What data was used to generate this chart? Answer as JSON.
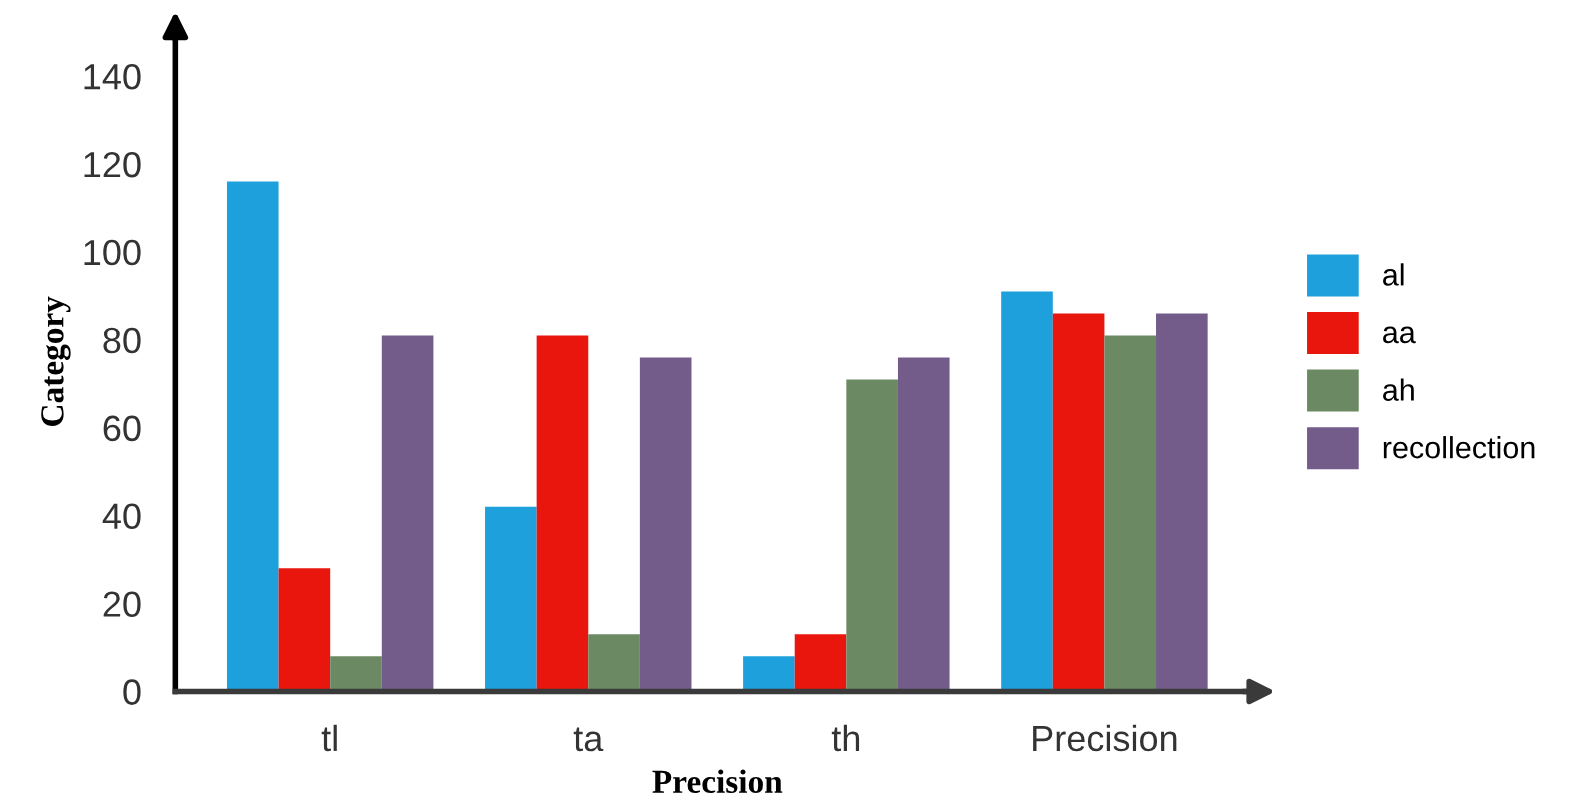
{
  "chart_data": {
    "type": "bar",
    "xlabel": "Precision",
    "ylabel": "Category",
    "categories": [
      "tl",
      "ta",
      "th",
      "Precision"
    ],
    "series": [
      {
        "name": "al",
        "color": "#1ea0dc",
        "values": [
          116,
          42,
          8,
          91
        ]
      },
      {
        "name": "aa",
        "color": "#e8160c",
        "values": [
          28,
          81,
          13,
          86
        ]
      },
      {
        "name": "ah",
        "color": "#6b8a63",
        "values": [
          8,
          13,
          71,
          81
        ]
      },
      {
        "name": "recollection",
        "color": "#735c8a",
        "values": [
          81,
          76,
          76,
          86
        ]
      }
    ],
    "ylim": [
      0,
      150
    ],
    "yticks": [
      0,
      20,
      40,
      60,
      80,
      100,
      120,
      140
    ],
    "grid": false,
    "legend": "right"
  }
}
